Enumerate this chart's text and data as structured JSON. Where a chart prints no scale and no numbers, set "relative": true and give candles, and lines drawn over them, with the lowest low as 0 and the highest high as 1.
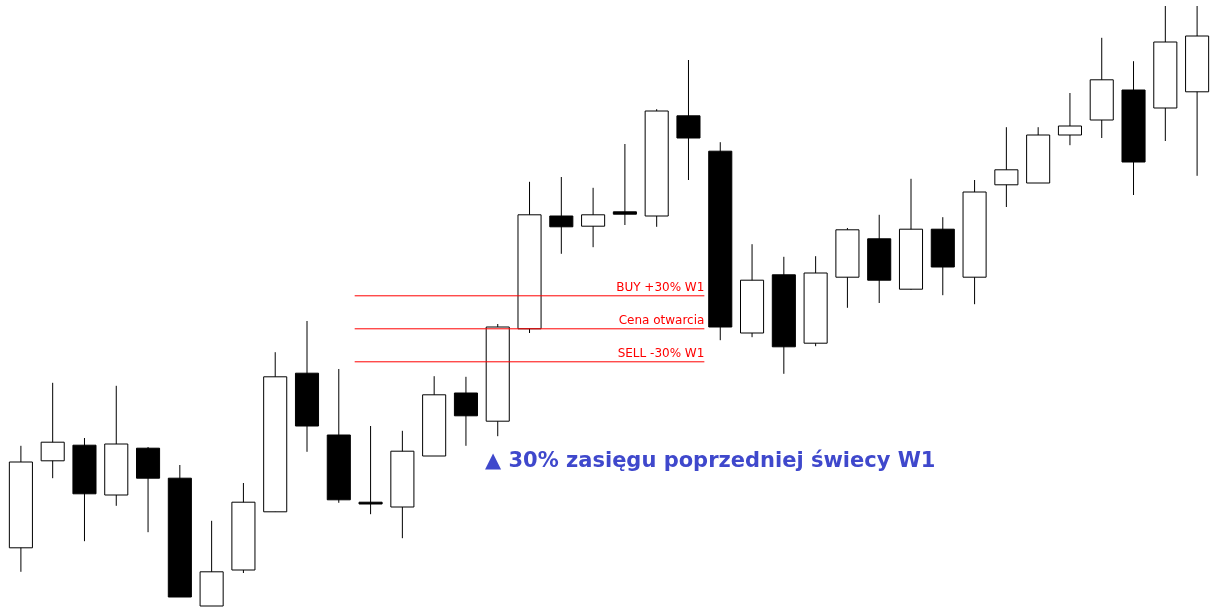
{
  "chart_data": {
    "type": "candlestick",
    "relative": true,
    "categories": [
      null,
      null,
      null,
      null,
      null,
      null,
      null,
      null,
      null,
      null,
      null,
      null,
      null,
      null,
      null,
      null,
      null,
      null,
      null,
      null,
      null,
      null,
      null,
      null,
      null,
      null,
      null,
      null,
      null,
      null,
      null,
      null,
      null,
      null,
      null,
      null,
      null,
      null
    ],
    "ohlc": [
      [
        0.097,
        0.267,
        0.057,
        0.24
      ],
      [
        0.242,
        0.372,
        0.213,
        0.273
      ],
      [
        0.268,
        0.28,
        0.108,
        0.187
      ],
      [
        0.185,
        0.367,
        0.167,
        0.27
      ],
      [
        0.263,
        0.265,
        0.123,
        0.213
      ],
      [
        0.213,
        0.235,
        0.015,
        0.015
      ],
      [
        0,
        0.142,
        0,
        0.057
      ],
      [
        0.06,
        0.205,
        0.055,
        0.173
      ],
      [
        0.157,
        0.423,
        0.157,
        0.382
      ],
      [
        0.388,
        0.475,
        0.257,
        0.3
      ],
      [
        0.285,
        0.395,
        0.172,
        0.177
      ],
      [
        0.173,
        0.3,
        0.153,
        0.17
      ],
      [
        0.165,
        0.292,
        0.113,
        0.258
      ],
      [
        0.25,
        0.383,
        0.25,
        0.352
      ],
      [
        0.355,
        0.382,
        0.267,
        0.317
      ],
      [
        0.308,
        0.47,
        0.283,
        0.465
      ],
      [
        0.462,
        0.707,
        0.455,
        0.652
      ],
      [
        0.65,
        0.715,
        0.587,
        0.632
      ],
      [
        0.633,
        0.697,
        0.598,
        0.652
      ],
      [
        0.657,
        0.77,
        0.635,
        0.653
      ],
      [
        0.65,
        0.828,
        0.632,
        0.825
      ],
      [
        0.817,
        0.91,
        0.71,
        0.78
      ],
      [
        0.758,
        0.773,
        0.443,
        0.465
      ],
      [
        0.455,
        0.603,
        0.448,
        0.543
      ],
      [
        0.552,
        0.582,
        0.387,
        0.432
      ],
      [
        0.438,
        0.583,
        0.433,
        0.555
      ],
      [
        0.548,
        0.63,
        0.497,
        0.627
      ],
      [
        0.612,
        0.652,
        0.505,
        0.543
      ],
      [
        0.528,
        0.712,
        0.527,
        0.628
      ],
      [
        0.628,
        0.648,
        0.518,
        0.565
      ],
      [
        0.548,
        0.71,
        0.503,
        0.69
      ],
      [
        0.702,
        0.798,
        0.665,
        0.727
      ],
      [
        0.705,
        0.798,
        0.705,
        0.785
      ],
      [
        0.785,
        0.855,
        0.768,
        0.8
      ],
      [
        0.81,
        0.947,
        0.78,
        0.877
      ],
      [
        0.86,
        0.908,
        0.685,
        0.74
      ],
      [
        0.83,
        1,
        0.775,
        0.94
      ],
      [
        0.857,
        1,
        0.717,
        0.95
      ]
    ],
    "ref_lines": [
      {
        "axis": "y",
        "value": 0.517,
        "label": "BUY +30% W1",
        "color": "#ff0000"
      },
      {
        "axis": "y",
        "value": 0.462,
        "label": "Cena otwarcia",
        "color": "#ff0000"
      },
      {
        "axis": "y",
        "value": 0.407,
        "label": "SELL -30% W1",
        "color": "#ff0000"
      }
    ],
    "annotations": [
      "▲ 30% zasięgu poprzedniej świecy W1"
    ]
  }
}
